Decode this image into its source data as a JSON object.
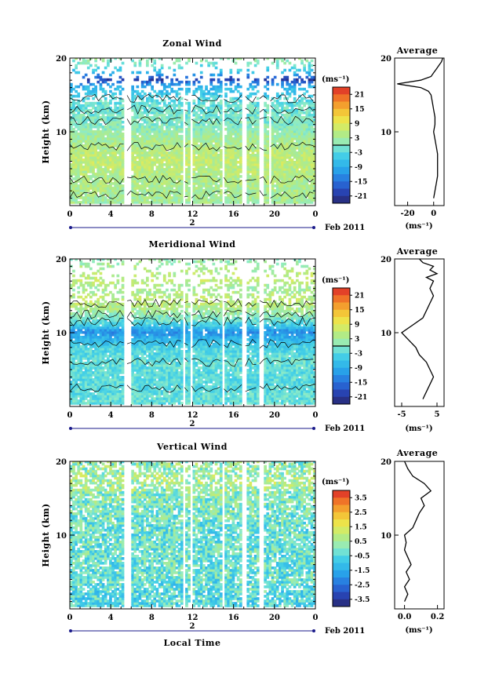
{
  "chart_data": [
    {
      "type": "heatmap",
      "title": "Zonal Wind",
      "ylabel": "Height (km)",
      "xlabel": "",
      "date_label": "Feb 2011",
      "day_label": "2",
      "x_ticks": [
        "0",
        "4",
        "8",
        "12",
        "16",
        "20",
        "0"
      ],
      "y_ticks": [
        "10",
        "20"
      ],
      "ylim": [
        0,
        20
      ],
      "xlim_hours": [
        0,
        24
      ],
      "colorbar": {
        "unit": "(ms⁻¹)",
        "ticks": [
          "21",
          "15",
          "9",
          "3",
          "-3",
          "-9",
          "-15",
          "-21"
        ],
        "range": [
          -24,
          24
        ]
      },
      "data_gaps_hours": [
        [
          5.4,
          5.9
        ],
        [
          11.0,
          11.4
        ],
        [
          11.8,
          12.1
        ],
        [
          14.9,
          15.2
        ],
        [
          16.9,
          17.3
        ],
        [
          18.5,
          18.9
        ],
        [
          19.5,
          19.7
        ]
      ],
      "height_profile_model": [
        [
          0.5,
          3
        ],
        [
          3,
          4
        ],
        [
          6,
          6
        ],
        [
          9,
          3
        ],
        [
          11,
          0
        ],
        [
          14,
          -2
        ],
        [
          16,
          -8
        ],
        [
          17,
          -20
        ],
        [
          18,
          -6
        ],
        [
          20,
          3
        ]
      ],
      "average_profile": {
        "title": "Average",
        "xlabel": "(ms⁻¹)",
        "x_ticks": [
          "-20",
          "0"
        ],
        "y_ticks": [
          "10",
          "20"
        ],
        "xlim": [
          -30,
          8
        ],
        "heights": [
          1,
          2,
          3,
          4,
          5,
          6,
          7,
          8,
          9,
          10,
          11,
          12,
          13,
          14,
          15,
          15.5,
          16,
          16.5,
          17,
          17.5,
          18,
          18.5,
          19,
          19.5,
          20
        ],
        "values": [
          0,
          1,
          2,
          3,
          3,
          3,
          3,
          2,
          1,
          0,
          1,
          1,
          0,
          -1,
          -2,
          -4,
          -10,
          -28,
          -10,
          -2,
          0,
          2,
          4,
          6,
          7
        ]
      }
    },
    {
      "type": "heatmap",
      "title": "Meridional Wind",
      "ylabel": "Height (km)",
      "xlabel": "",
      "date_label": "Feb 2011",
      "day_label": "2",
      "x_ticks": [
        "0",
        "4",
        "8",
        "12",
        "16",
        "20",
        "0"
      ],
      "y_ticks": [
        "10",
        "20"
      ],
      "ylim": [
        0,
        20
      ],
      "xlim_hours": [
        0,
        24
      ],
      "colorbar": {
        "unit": "(ms⁻¹)",
        "ticks": [
          "21",
          "15",
          "9",
          "3",
          "-3",
          "-9",
          "-15",
          "-21"
        ],
        "range": [
          -24,
          24
        ]
      },
      "data_gaps_hours": [
        [
          5.4,
          5.9
        ],
        [
          11.0,
          11.4
        ],
        [
          11.8,
          12.1
        ],
        [
          14.9,
          15.2
        ],
        [
          16.9,
          17.3
        ],
        [
          18.5,
          18.9
        ]
      ],
      "height_profile_model": [
        [
          0.5,
          -2
        ],
        [
          3,
          -3
        ],
        [
          6,
          -2
        ],
        [
          8,
          -4
        ],
        [
          10,
          -12
        ],
        [
          11,
          -4
        ],
        [
          12.5,
          2
        ],
        [
          14,
          6
        ],
        [
          16,
          3
        ],
        [
          17,
          6
        ],
        [
          19,
          3
        ],
        [
          20,
          1
        ]
      ],
      "average_profile": {
        "title": "Average",
        "xlabel": "(ms⁻¹)",
        "x_ticks": [
          "-5",
          "5"
        ],
        "y_ticks": [
          "10",
          "20"
        ],
        "xlim": [
          -7,
          7
        ],
        "heights": [
          1,
          2,
          3,
          4,
          5,
          6,
          7,
          8,
          9,
          10,
          11,
          12,
          13,
          14,
          15,
          16,
          17,
          17.5,
          18,
          18.5,
          19,
          19.5,
          20
        ],
        "values": [
          1,
          2,
          3,
          4,
          3,
          2,
          0,
          -1,
          -3,
          -5,
          -2,
          1,
          2,
          3,
          4,
          3,
          4,
          2,
          5,
          3,
          4,
          1,
          0
        ]
      }
    },
    {
      "type": "heatmap",
      "title": "Vertical Wind",
      "ylabel": "Height (km)",
      "xlabel": "Local Time",
      "date_label": "Feb 2011",
      "day_label": "2",
      "x_ticks": [
        "0",
        "4",
        "8",
        "12",
        "16",
        "20",
        "0"
      ],
      "y_ticks": [
        "10",
        "20"
      ],
      "ylim": [
        0,
        20
      ],
      "xlim_hours": [
        0,
        24
      ],
      "colorbar": {
        "unit": "(ms⁻¹)",
        "ticks": [
          "3.5",
          "2.5",
          "1.5",
          "0.5",
          "-0.5",
          "-1.5",
          "-2.5",
          "-3.5"
        ],
        "range": [
          -4,
          4
        ]
      },
      "data_gaps_hours": [
        [
          5.4,
          5.9
        ],
        [
          11.0,
          11.4
        ],
        [
          11.8,
          12.1
        ],
        [
          14.9,
          15.2
        ],
        [
          16.9,
          17.3
        ],
        [
          18.5,
          18.9
        ]
      ],
      "height_profile_model": [
        [
          0.5,
          -0.6
        ],
        [
          5,
          -0.3
        ],
        [
          10,
          -0.3
        ],
        [
          12,
          -0.2
        ],
        [
          15,
          0.1
        ],
        [
          17,
          0.6
        ],
        [
          20,
          0.2
        ]
      ],
      "average_profile": {
        "title": "Average",
        "xlabel": "(ms⁻¹)",
        "x_ticks": [
          "0.0",
          "0.2"
        ],
        "y_ticks": [
          "10",
          "20"
        ],
        "xlim": [
          -0.06,
          0.24
        ],
        "heights": [
          1,
          2,
          3,
          4,
          5,
          6,
          7,
          8,
          9,
          10,
          11,
          12,
          13,
          14,
          15,
          16,
          17,
          18,
          19,
          20
        ],
        "values": [
          0.0,
          0.02,
          0.0,
          0.03,
          0.01,
          0.04,
          0.02,
          0.0,
          0.01,
          0.0,
          0.05,
          0.07,
          0.09,
          0.12,
          0.1,
          0.16,
          0.12,
          0.05,
          0.02,
          0.0
        ]
      }
    }
  ]
}
